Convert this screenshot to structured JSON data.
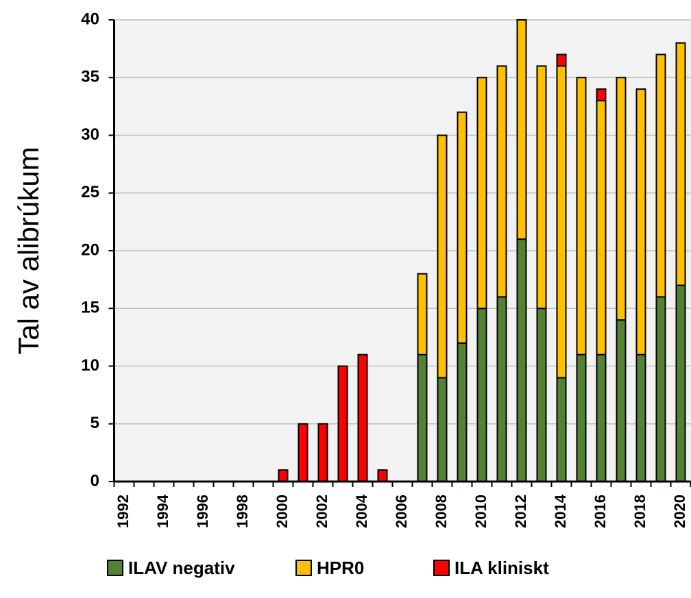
{
  "chart_data": {
    "type": "stacked-bar",
    "y_label": "Tal av alibrúkum",
    "categories": [
      "1992",
      null,
      "1994",
      null,
      "1996",
      null,
      "1998",
      null,
      "2000",
      null,
      "2002",
      null,
      "2004",
      null,
      "2006",
      null,
      "2008",
      null,
      "2010",
      null,
      "2012",
      null,
      "2014",
      null,
      "2016",
      null,
      "2018",
      null,
      "2020"
    ],
    "series": [
      {
        "name": "ILAV negativ",
        "color": "#548235",
        "values": [
          0,
          0,
          0,
          0,
          0,
          0,
          0,
          0,
          0,
          0,
          0,
          0,
          0,
          0,
          0,
          11,
          9,
          12,
          15,
          16,
          21,
          15,
          9,
          11,
          11,
          14,
          11,
          16,
          17
        ]
      },
      {
        "name": "HPR0",
        "color": "#ffc000",
        "values": [
          0,
          0,
          0,
          0,
          0,
          0,
          0,
          0,
          0,
          0,
          0,
          0,
          0,
          0,
          0,
          7,
          21,
          20,
          20,
          20,
          19,
          21,
          27,
          24,
          22,
          21,
          23,
          21,
          21
        ]
      },
      {
        "name": "ILA kliniskt",
        "color": "#ff0000",
        "values": [
          0,
          0,
          0,
          0,
          0,
          0,
          0,
          0,
          1,
          5,
          5,
          10,
          11,
          1,
          0,
          0,
          0,
          0,
          0,
          0,
          0,
          0,
          1,
          0,
          1,
          0,
          0,
          0,
          0
        ]
      }
    ],
    "ylim": [
      0,
      40
    ],
    "yticks": [
      0,
      5,
      10,
      15,
      20,
      25,
      30,
      35,
      40
    ],
    "grid": true
  }
}
